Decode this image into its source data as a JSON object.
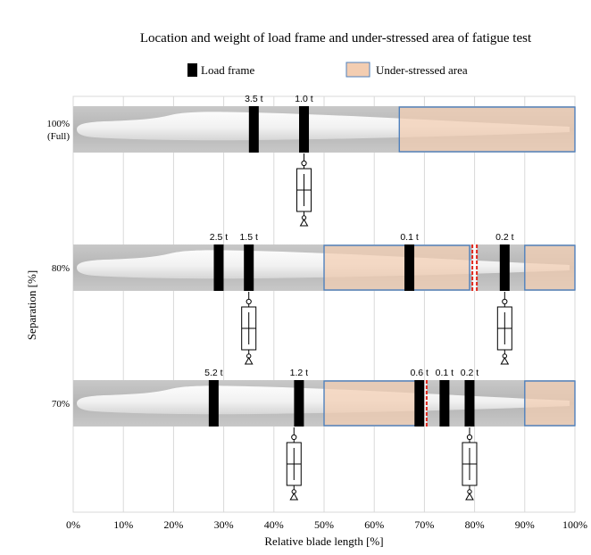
{
  "chart_data": {
    "type": "bar",
    "title": "Location and weight of load frame and under-stressed area of fatigue test",
    "xlabel": "Relative blade length [%]",
    "ylabel": "Separation [%]",
    "xlim": [
      0,
      100
    ],
    "x_ticks": [
      "0%",
      "10%",
      "20%",
      "30%",
      "40%",
      "50%",
      "60%",
      "70%",
      "80%",
      "90%",
      "100%"
    ],
    "grid": "vertical",
    "legend": {
      "position": "top",
      "items": [
        {
          "label": "Load frame",
          "color": "#000000"
        },
        {
          "label": "Under-stressed area",
          "color": "#f3cdb1",
          "edge": "#4f81bd"
        }
      ]
    },
    "rows": [
      {
        "label_lines": [
          "100%",
          "(Full)"
        ],
        "separation": 100,
        "load_frames": [
          {
            "position": 36,
            "weight_label": "3.5 t"
          },
          {
            "position": 46,
            "weight_label": "1.0 t"
          }
        ],
        "under_stressed": [
          [
            65,
            100
          ]
        ],
        "split_marks": [],
        "actuator_at": 46
      },
      {
        "label_lines": [
          "80%"
        ],
        "separation": 80,
        "load_frames": [
          {
            "position": 29,
            "weight_label": "2.5 t"
          },
          {
            "position": 35,
            "weight_label": "1.5 t"
          },
          {
            "position": 67,
            "weight_label": "0.1 t"
          },
          {
            "position": 86,
            "weight_label": "0.2 t"
          }
        ],
        "under_stressed": [
          [
            50,
            79
          ],
          [
            90,
            100
          ]
        ],
        "split_marks": [
          80
        ],
        "actuators_at": [
          35,
          86
        ]
      },
      {
        "label_lines": [
          "70%"
        ],
        "separation": 70,
        "load_frames": [
          {
            "position": 28,
            "weight_label": "5.2 t"
          },
          {
            "position": 45,
            "weight_label": "1.2 t"
          },
          {
            "position": 69,
            "weight_label": "0.6 t"
          },
          {
            "position": 74,
            "weight_label": "0.1 t"
          },
          {
            "position": 79,
            "weight_label": "0.2 t"
          }
        ],
        "under_stressed": [
          [
            50,
            70
          ],
          [
            90,
            100
          ]
        ],
        "split_marks": [
          70
        ],
        "actuators_at": [
          44,
          79
        ]
      }
    ],
    "colors": {
      "load_frame": "#000000",
      "under_stressed_fill": "#f3cdb1",
      "under_stressed_edge": "#4f81bd",
      "split_mark": "#e0251b",
      "band": "#bdbdbd",
      "grid": "#d9d9d9"
    }
  }
}
